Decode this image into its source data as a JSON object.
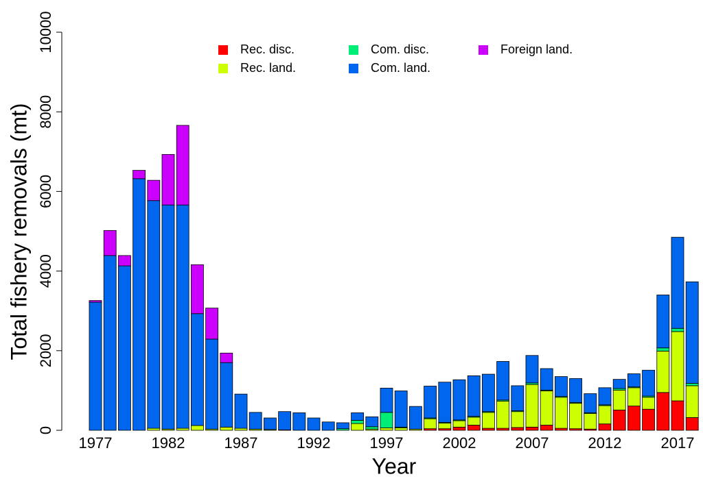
{
  "chart_data": {
    "type": "stacked_bar",
    "x_label": "Year",
    "y_label": "Total fishery removals (mt)",
    "categories": [
      "1977",
      null,
      null,
      null,
      null,
      "1982",
      null,
      null,
      null,
      null,
      "1987",
      null,
      null,
      null,
      null,
      "1992",
      null,
      null,
      null,
      null,
      "1997",
      null,
      null,
      null,
      null,
      "2002",
      null,
      null,
      null,
      null,
      "2007",
      null,
      null,
      null,
      null,
      "2012",
      null,
      null,
      null,
      null,
      "2017",
      null
    ],
    "series": [
      {
        "name": "Rec. disc.",
        "color": "#ff0000",
        "values": [
          0,
          0,
          0,
          0,
          0,
          0,
          0,
          0,
          0,
          0,
          0,
          0,
          0,
          0,
          0,
          0,
          0,
          0,
          0,
          0,
          0,
          0,
          0,
          40,
          40,
          80,
          130,
          50,
          50,
          70,
          80,
          130,
          50,
          40,
          30,
          160,
          510,
          610,
          530,
          950,
          740,
          320
        ]
      },
      {
        "name": "Rec. land.",
        "color": "#ccff00",
        "values": [
          0,
          0,
          0,
          0,
          50,
          30,
          50,
          120,
          30,
          80,
          50,
          30,
          20,
          10,
          0,
          0,
          0,
          0,
          170,
          30,
          60,
          60,
          30,
          250,
          140,
          160,
          200,
          400,
          680,
          400,
          1070,
          860,
          780,
          640,
          390,
          460,
          500,
          460,
          300,
          1040,
          1740,
          800
        ]
      },
      {
        "name": "Com. disc.",
        "color": "#00ee77",
        "values": [
          0,
          0,
          0,
          0,
          0,
          0,
          0,
          0,
          0,
          0,
          0,
          0,
          0,
          0,
          0,
          0,
          0,
          40,
          80,
          60,
          390,
          20,
          0,
          20,
          20,
          20,
          20,
          20,
          30,
          20,
          40,
          20,
          20,
          20,
          20,
          20,
          40,
          20,
          30,
          80,
          80,
          60
        ]
      },
      {
        "name": "Com. land.",
        "color": "#0066ee",
        "values": [
          3220,
          4390,
          4130,
          6320,
          5720,
          5630,
          5610,
          2810,
          2260,
          1620,
          860,
          420,
          290,
          460,
          440,
          310,
          210,
          150,
          190,
          250,
          610,
          910,
          570,
          800,
          1010,
          1010,
          1020,
          940,
          970,
          630,
          690,
          540,
          500,
          600,
          480,
          430,
          230,
          330,
          650,
          1330,
          2290,
          2550
        ]
      },
      {
        "name": "Foreign land.",
        "color": "#cc00ff",
        "values": [
          40,
          630,
          260,
          210,
          510,
          1270,
          2000,
          1230,
          780,
          240,
          0,
          0,
          0,
          0,
          0,
          0,
          0,
          0,
          0,
          0,
          0,
          0,
          0,
          0,
          0,
          0,
          0,
          0,
          0,
          0,
          0,
          0,
          0,
          0,
          0,
          0,
          0,
          0,
          0,
          0,
          0,
          0
        ]
      }
    ],
    "ylim": [
      0,
      10000
    ],
    "yticks": [
      0,
      2000,
      4000,
      6000,
      8000,
      10000
    ]
  }
}
